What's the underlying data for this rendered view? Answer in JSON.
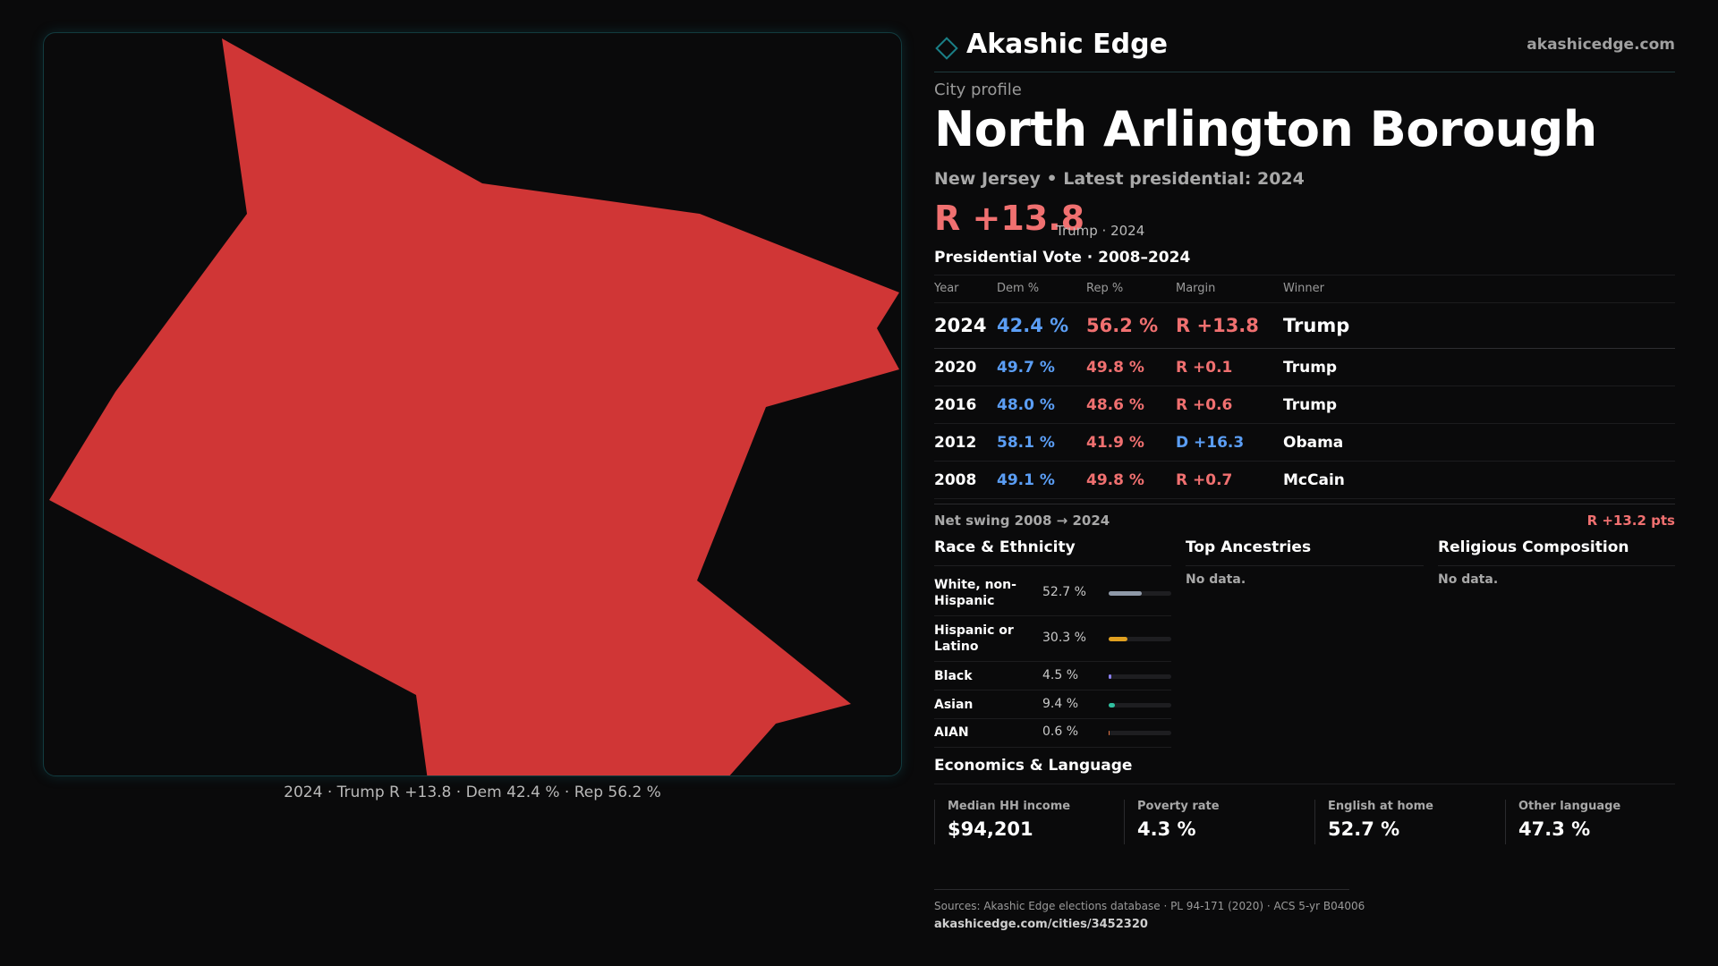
{
  "brand": {
    "name": "Akashic Edge",
    "url": "akashicedge.com"
  },
  "profile": {
    "eyebrow": "City profile",
    "title": "North Arlington Borough",
    "subtitle": "New Jersey • Latest presidential: 2024",
    "headline_margin": "R +13.8",
    "headline_note": "Trump · 2024"
  },
  "map": {
    "fill_color": "#d03636",
    "border_color": "#123b3f",
    "caption": "2024 · Trump R +13.8 · Dem 42.4 % · Rep 56.2 %"
  },
  "vote": {
    "title": "Presidential Vote · 2008–2024",
    "headers": {
      "year": "Year",
      "dem": "Dem %",
      "rep": "Rep %",
      "margin": "Margin",
      "winner": "Winner"
    },
    "rows": [
      {
        "year": "2024",
        "dem": "42.4 %",
        "rep": "56.2 %",
        "margin": "R +13.8",
        "winner": "Trump"
      },
      {
        "year": "2020",
        "dem": "49.7 %",
        "rep": "49.8 %",
        "margin": "R +0.1",
        "winner": "Trump"
      },
      {
        "year": "2016",
        "dem": "48.0 %",
        "rep": "48.6 %",
        "margin": "R +0.6",
        "winner": "Trump"
      },
      {
        "year": "2012",
        "dem": "58.1 %",
        "rep": "41.9 %",
        "margin": "D +16.3",
        "winner": "Obama"
      },
      {
        "year": "2008",
        "dem": "49.1 %",
        "rep": "49.8 %",
        "margin": "R +0.7",
        "winner": "McCain"
      }
    ],
    "swing_label": "Net swing 2008 → 2024",
    "swing_value": "R +13.2 pts"
  },
  "race": {
    "title": "Race & Ethnicity",
    "rows": [
      {
        "label": "White, non-Hispanic",
        "pct": "52.7 %",
        "share": 0.527,
        "color": "#8f99a8"
      },
      {
        "label": "Hispanic or Latino",
        "pct": "30.3 %",
        "share": 0.303,
        "color": "#e0a020"
      },
      {
        "label": "Black",
        "pct": "4.5 %",
        "share": 0.045,
        "color": "#8a7ff0"
      },
      {
        "label": "Asian",
        "pct": "9.4 %",
        "share": 0.094,
        "color": "#30c0a0"
      },
      {
        "label": "AIAN",
        "pct": "0.6 %",
        "share": 0.006,
        "color": "#e07040"
      }
    ]
  },
  "ancestries": {
    "title": "Top Ancestries",
    "empty": "No data."
  },
  "religion": {
    "title": "Religious Composition",
    "empty": "No data."
  },
  "economics": {
    "title": "Economics & Language",
    "stats": [
      {
        "label": "Median HH income",
        "value": "$94,201"
      },
      {
        "label": "Poverty rate",
        "value": "4.3 %"
      },
      {
        "label": "English at home",
        "value": "52.7 %"
      },
      {
        "label": "Other language",
        "value": "47.3 %"
      }
    ]
  },
  "footer": {
    "sources": "Sources: Akashic Edge elections database · PL 94-171 (2020) · ACS 5-yr B04006",
    "url": "akashicedge.com/cities/3452320"
  },
  "colors": {
    "dem": "#5b9ef5",
    "rep": "#f07070",
    "background": "#0a0a0b",
    "accent": "#1a7f86"
  }
}
